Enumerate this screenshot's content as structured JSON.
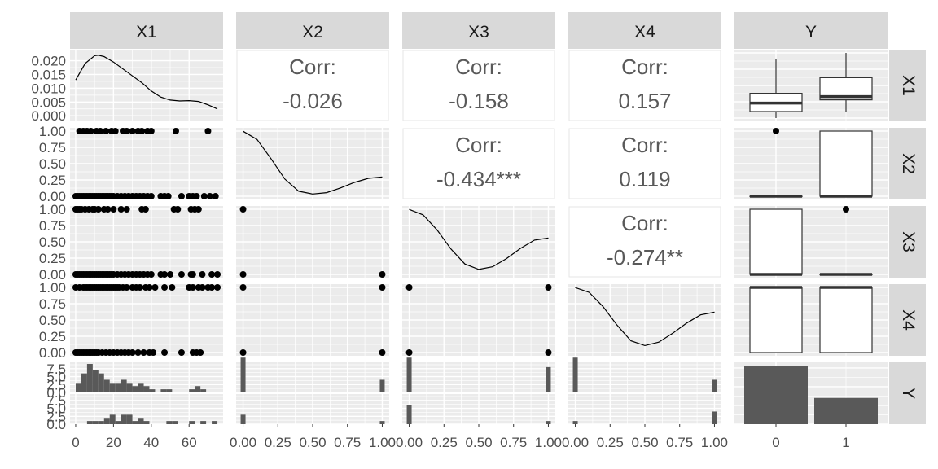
{
  "variables": [
    "X1",
    "X2",
    "X3",
    "X4",
    "Y"
  ],
  "colors": {
    "strip": "#d9d9d9",
    "panel": "#ebebeb",
    "grid": "#ffffff",
    "ink": "#000000",
    "bar": "#595959",
    "text": "#595959"
  },
  "chart_data": {
    "type": "scatter",
    "kind": "pairs-plot",
    "variables": [
      "X1",
      "X2",
      "X3",
      "X4",
      "Y"
    ],
    "axes": {
      "X1": {
        "xlim": [
          -3,
          78
        ],
        "xticks": [
          0,
          20,
          40,
          60
        ],
        "xtick_labels": [
          "0",
          "20",
          "40",
          "60"
        ]
      },
      "X2": {
        "xlim": [
          -0.05,
          1.05
        ],
        "xticks": [
          0,
          0.25,
          0.5,
          0.75,
          1
        ],
        "xtick_labels": [
          "0.00",
          "0.25",
          "0.50",
          "0.75",
          "1.00"
        ]
      },
      "X3": {
        "xlim": [
          -0.05,
          1.05
        ],
        "xticks": [
          0,
          0.25,
          0.5,
          0.75,
          1
        ],
        "xtick_labels": [
          "0.00",
          "0.25",
          "0.50",
          "0.75",
          "1.00"
        ]
      },
      "X4": {
        "xlim": [
          -0.05,
          1.05
        ],
        "xticks": [
          0,
          0.25,
          0.5,
          0.75,
          1
        ],
        "xtick_labels": [
          "0.00",
          "0.25",
          "0.50",
          "0.75",
          "1.00"
        ]
      },
      "Y": {
        "categories": [
          "0",
          "1"
        ]
      }
    },
    "density_ylim_X1": [
      -0.002,
      0.024
    ],
    "density_yticks_X1": [
      0,
      0.005,
      0.01,
      0.015,
      0.02
    ],
    "density_ytick_labels_X1": [
      "0.000",
      "0.005",
      "0.010",
      "0.015",
      "0.020"
    ],
    "binary_yticks": [
      0,
      0.25,
      0.5,
      0.75,
      1
    ],
    "binary_ytick_labels": [
      "0.00",
      "0.25",
      "0.50",
      "0.75",
      "1.00"
    ],
    "density_X1": {
      "x": [
        0,
        5,
        10,
        12,
        15,
        20,
        25,
        30,
        35,
        40,
        45,
        50,
        55,
        60,
        65,
        70,
        75
      ],
      "y": [
        0.013,
        0.019,
        0.0218,
        0.022,
        0.0215,
        0.0195,
        0.017,
        0.0145,
        0.012,
        0.009,
        0.0068,
        0.0057,
        0.0054,
        0.0055,
        0.0052,
        0.004,
        0.0025
      ]
    },
    "density_binary": {
      "X2": {
        "x": [
          0,
          0.1,
          0.2,
          0.3,
          0.4,
          0.5,
          0.6,
          0.7,
          0.8,
          0.9,
          1.0
        ],
        "y": [
          1.0,
          0.88,
          0.6,
          0.3,
          0.12,
          0.08,
          0.1,
          0.17,
          0.25,
          0.31,
          0.33
        ]
      },
      "X3": {
        "x": [
          0,
          0.1,
          0.2,
          0.3,
          0.4,
          0.5,
          0.6,
          0.7,
          0.8,
          0.9,
          1.0
        ],
        "y": [
          1.0,
          0.92,
          0.7,
          0.42,
          0.2,
          0.12,
          0.16,
          0.28,
          0.43,
          0.55,
          0.58
        ]
      },
      "X4": {
        "x": [
          0,
          0.1,
          0.2,
          0.3,
          0.4,
          0.5,
          0.6,
          0.7,
          0.8,
          0.9,
          1.0
        ],
        "y": [
          1.0,
          0.93,
          0.72,
          0.45,
          0.22,
          0.15,
          0.2,
          0.33,
          0.48,
          0.6,
          0.64
        ]
      }
    },
    "correlations": [
      {
        "row": "X1",
        "col": "X2",
        "label": "Corr:",
        "value": "-0.026"
      },
      {
        "row": "X1",
        "col": "X3",
        "label": "Corr:",
        "value": "-0.158"
      },
      {
        "row": "X1",
        "col": "X4",
        "label": "Corr:",
        "value": "0.157"
      },
      {
        "row": "X2",
        "col": "X3",
        "label": "Corr:",
        "value": "-0.434***"
      },
      {
        "row": "X2",
        "col": "X4",
        "label": "Corr:",
        "value": "0.119"
      },
      {
        "row": "X3",
        "col": "X4",
        "label": "Corr:",
        "value": "-0.274**"
      }
    ],
    "scatter_X1_vs_binary": {
      "X2": {
        "one": [
          2,
          4,
          6,
          8,
          11,
          13,
          16,
          19,
          21,
          25,
          27,
          30,
          33,
          35,
          38,
          40,
          53,
          70
        ],
        "zero": [
          0,
          1,
          2,
          3,
          4,
          5,
          6,
          7,
          8,
          9,
          10,
          11,
          12,
          13,
          14,
          15,
          16,
          17,
          18,
          19,
          20,
          22,
          24,
          26,
          28,
          30,
          32,
          34,
          36,
          38,
          40,
          45,
          47,
          49,
          56,
          60,
          62,
          64,
          68,
          71,
          74
        ]
      },
      "X3": {
        "one": [
          0,
          1,
          2,
          3,
          5,
          7,
          9,
          10,
          12,
          15,
          17,
          20,
          24,
          27,
          35,
          37,
          52,
          54,
          61,
          63,
          65
        ],
        "zero": [
          0,
          1,
          2,
          3,
          4,
          5,
          6,
          7,
          8,
          9,
          10,
          11,
          12,
          13,
          14,
          15,
          16,
          17,
          18,
          19,
          20,
          22,
          24,
          26,
          28,
          30,
          32,
          34,
          36,
          38,
          40,
          45,
          47,
          50,
          56,
          61,
          62,
          67,
          72,
          75
        ]
      },
      "X4": {
        "one": [
          0,
          2,
          4,
          5,
          6,
          7,
          8,
          9,
          10,
          11,
          12,
          13,
          14,
          15,
          16,
          17,
          18,
          19,
          20,
          21,
          22,
          23,
          25,
          27,
          30,
          32,
          34,
          37,
          39,
          42,
          47,
          51,
          60,
          62,
          65,
          67,
          70,
          72,
          75
        ],
        "zero": [
          0,
          1,
          2,
          3,
          4,
          5,
          6,
          7,
          8,
          9,
          10,
          11,
          12,
          14,
          16,
          18,
          20,
          22,
          24,
          26,
          28,
          30,
          33,
          36,
          39,
          41,
          47,
          56,
          62,
          64,
          66
        ]
      }
    },
    "binary_pairs_present": {
      "X2_X3": [
        [
          0,
          0
        ],
        [
          0,
          1
        ],
        [
          1,
          0
        ]
      ],
      "X2_X4": [
        [
          0,
          0
        ],
        [
          0,
          1
        ],
        [
          1,
          0
        ],
        [
          1,
          1
        ]
      ],
      "X3_X4": [
        [
          0,
          0
        ],
        [
          0,
          1
        ],
        [
          1,
          0
        ],
        [
          1,
          1
        ]
      ]
    },
    "boxplots": {
      "X1": {
        "0": {
          "lower": 0,
          "q1": 0.1,
          "median": 0.23,
          "q3": 0.38,
          "upper": 0.9
        },
        "1": {
          "lower": 0.1,
          "q1": 0.28,
          "median": 0.33,
          "q3": 0.62,
          "upper": 1.0
        }
      },
      "X2": {
        "0": {
          "lower": 0,
          "q1": 0,
          "median": 0,
          "q3": 0,
          "upper": 0,
          "outliers": [
            1
          ]
        },
        "1": {
          "lower": 0,
          "q1": 0,
          "median": 0,
          "q3": 1,
          "upper": 1
        }
      },
      "X3": {
        "0": {
          "lower": 0,
          "q1": 0,
          "median": 0,
          "q3": 1,
          "upper": 1
        },
        "1": {
          "lower": 0,
          "q1": 0,
          "median": 0,
          "q3": 0,
          "upper": 0,
          "outliers": [
            1
          ]
        }
      },
      "X4": {
        "0": {
          "lower": 0,
          "q1": 0,
          "median": 1,
          "q3": 1,
          "upper": 1
        },
        "1": {
          "lower": 0,
          "q1": 0,
          "median": 1,
          "q3": 1,
          "upper": 1
        }
      }
    },
    "histograms_by_Y": {
      "X1": {
        "bins": [
          0,
          3,
          6,
          9,
          12,
          15,
          18,
          21,
          24,
          27,
          30,
          33,
          36,
          39,
          42,
          45,
          48,
          51,
          54,
          57,
          60,
          63,
          66,
          69,
          72,
          75
        ],
        "Y0": [
          3,
          6,
          9,
          7,
          6,
          4,
          3,
          3,
          4,
          3,
          2,
          3,
          2,
          1,
          0,
          1,
          1,
          0,
          0,
          0,
          1,
          2,
          1,
          0,
          0
        ],
        "Y1": [
          0,
          0,
          1,
          1,
          1,
          2,
          3,
          1,
          3,
          3,
          1,
          2,
          1,
          0,
          0,
          0,
          1,
          1,
          0,
          0,
          1,
          0,
          1,
          0,
          1
        ]
      },
      "X2": {
        "Y0": [
          11,
          4
        ],
        "Y1": [
          3,
          1
        ]
      },
      "X3": {
        "Y0": [
          11,
          8
        ],
        "Y1": [
          6,
          1
        ]
      },
      "X4": {
        "Y0": [
          11,
          4
        ],
        "Y1": [
          1,
          4
        ]
      },
      "hist_ylim": [
        0,
        9
      ],
      "hist_yticks": [
        0,
        2.5,
        5,
        7.5
      ],
      "hist_ytick_labels": [
        "0.0",
        "2.5",
        "5.0",
        "7.5"
      ]
    },
    "bar_Y": {
      "categories": [
        "0",
        "1"
      ],
      "counts": [
        62,
        28
      ]
    },
    "y_xticks": [
      "0",
      "1"
    ]
  }
}
